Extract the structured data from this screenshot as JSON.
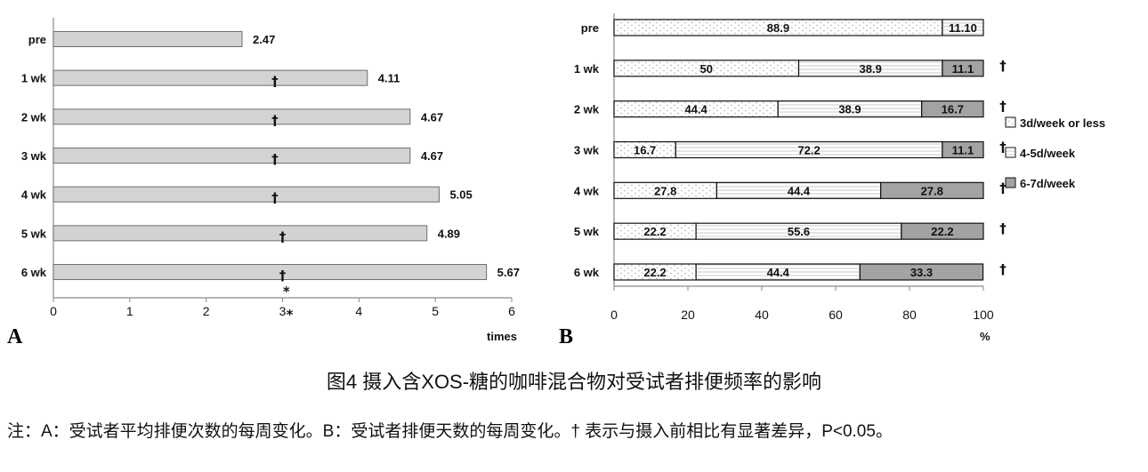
{
  "chart_data": [
    {
      "panel_label": "A",
      "type": "bar",
      "orientation": "horizontal",
      "categories": [
        "pre",
        "1 wk",
        "2 wk",
        "3 wk",
        "4 wk",
        "5 wk",
        "6 wk"
      ],
      "values": [
        2.47,
        4.11,
        4.67,
        4.67,
        5.05,
        4.89,
        5.67
      ],
      "markers": [
        "",
        "†",
        "†",
        "†",
        "†",
        "†",
        "†"
      ],
      "annotations": [
        {
          "text": "*",
          "category": "6 wk",
          "placement": "below-marker"
        },
        {
          "text": "*",
          "tick": 3,
          "placement": "beside-tick-label"
        }
      ],
      "xlabel": "times",
      "ylabel": "",
      "xlim": [
        0,
        6
      ],
      "xticks": [
        0,
        1,
        2,
        3,
        4,
        5,
        6
      ],
      "grid": false,
      "colors": {
        "bar_fill": "#d3d3d3",
        "bar_edge": "#6e6e6e",
        "axis": "#8a8a8a"
      }
    },
    {
      "panel_label": "B",
      "type": "bar",
      "orientation": "horizontal",
      "stacked": true,
      "categories": [
        "pre",
        "1 wk",
        "2 wk",
        "3 wk",
        "4 wk",
        "5 wk",
        "6 wk"
      ],
      "series": [
        {
          "name": "3d/week or less",
          "values": [
            88.9,
            50,
            44.4,
            16.7,
            27.8,
            22.2,
            22.2
          ],
          "fill_style": "dotted",
          "color": "#bdbdbd"
        },
        {
          "name": "4-5d/week",
          "values": [
            11.1,
            38.9,
            38.9,
            72.2,
            44.4,
            55.6,
            44.4
          ],
          "fill_style": "striped",
          "color": "#c8c8c8"
        },
        {
          "name": "6-7d/week",
          "values": [
            0,
            11.1,
            16.7,
            11.1,
            27.8,
            22.2,
            33.3
          ],
          "fill_style": "solid",
          "color": "#a3a3a3"
        }
      ],
      "segment_labels": [
        [
          "88.9",
          "11.10",
          ""
        ],
        [
          "50",
          "38.9",
          "11.1"
        ],
        [
          "44.4",
          "38.9",
          "16.7"
        ],
        [
          "16.7",
          "72.2",
          "11.1"
        ],
        [
          "27.8",
          "44.4",
          "27.8"
        ],
        [
          "22.2",
          "55.6",
          "22.2"
        ],
        [
          "22.2",
          "44.4",
          "33.3"
        ]
      ],
      "markers": [
        "",
        "†",
        "†",
        "†",
        "†",
        "†",
        "†"
      ],
      "xlabel": "%",
      "ylabel": "",
      "xlim": [
        0,
        100
      ],
      "xticks": [
        0,
        20,
        40,
        60,
        80,
        100
      ],
      "grid": false,
      "legend_position": "right",
      "colors": {
        "bar_edge": "#111111",
        "axis": "#8a8a8a"
      }
    }
  ],
  "caption": {
    "title": "图4 摄入含XOS-糖的咖啡混合物对受试者排便频率的影响",
    "note": "注：A：受试者平均排便次数的每周变化。B：受试者排便天数的每周变化。† 表示与摄入前相比有显著差异，P<0.05。"
  }
}
